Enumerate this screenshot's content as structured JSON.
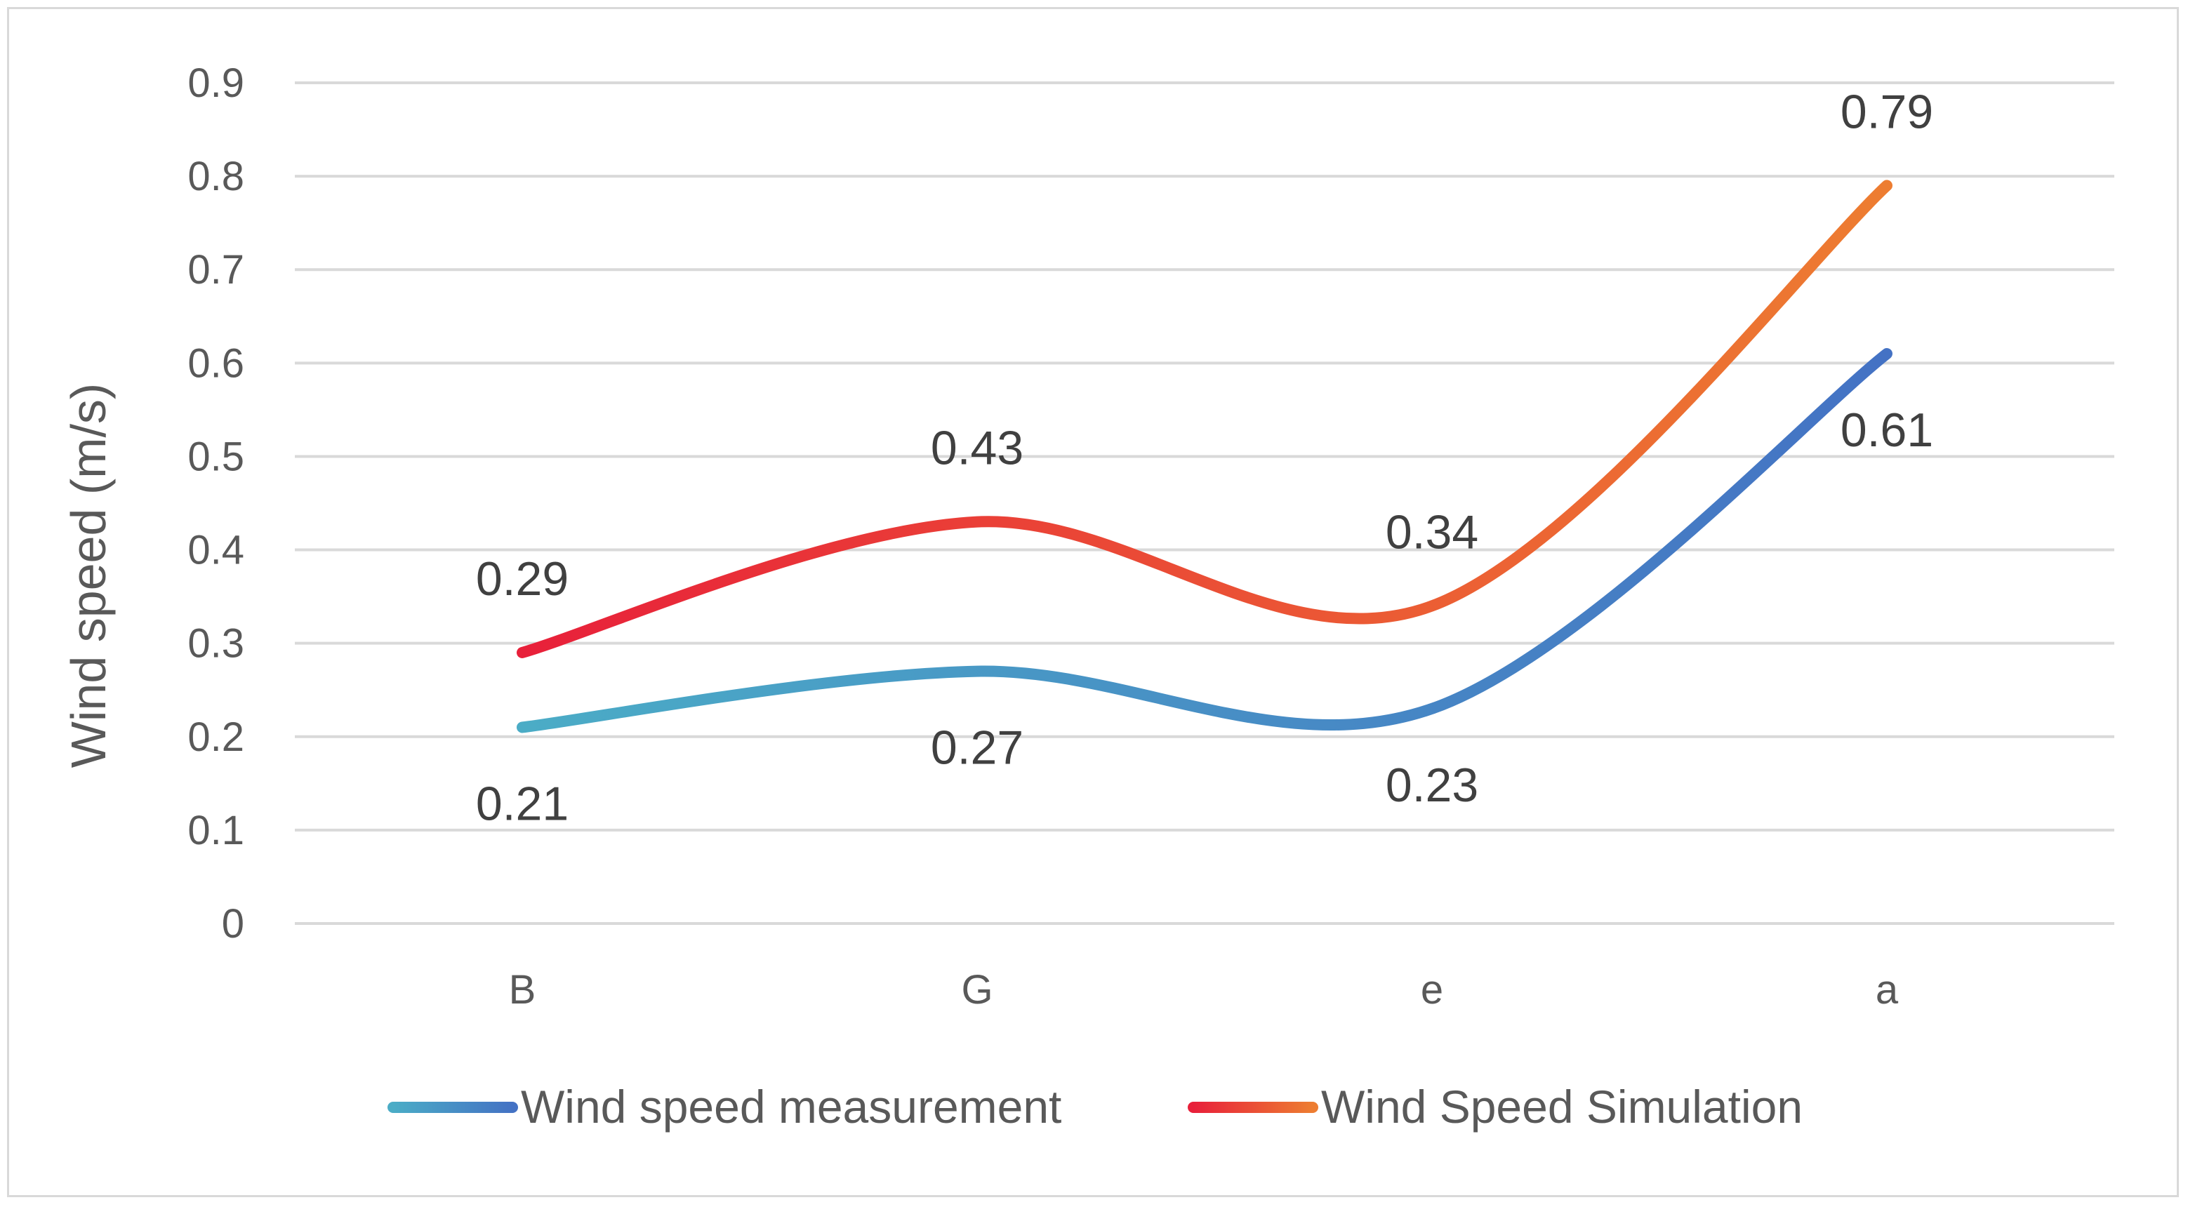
{
  "chart_data": {
    "type": "line",
    "categories": [
      "B",
      "G",
      "e",
      "a"
    ],
    "series": [
      {
        "name": "Wind speed measurement",
        "values": [
          0.21,
          0.27,
          0.23,
          0.61
        ],
        "labels": [
          "0.21",
          "0.27",
          "0.23",
          "0.61"
        ],
        "color_start": "#4bacc6",
        "color_end": "#4472c4"
      },
      {
        "name": "Wind Speed Simulation",
        "values": [
          0.29,
          0.43,
          0.34,
          0.79
        ],
        "labels": [
          "0.29",
          "0.43",
          "0.34",
          "0.79"
        ],
        "color_start": "#e8203a",
        "color_end": "#ed7d31"
      }
    ],
    "title": "",
    "xlabel": "",
    "ylabel": "Wind speed (m/s)",
    "ylim": [
      0,
      0.9
    ],
    "yticks": [
      "0",
      "0.1",
      "0.2",
      "0.3",
      "0.4",
      "0.5",
      "0.6",
      "0.7",
      "0.8",
      "0.9"
    ],
    "grid": true,
    "legend": "bottom",
    "smooth": true,
    "label_positions": [
      [
        "below",
        "below",
        "below",
        "below"
      ],
      [
        "above",
        "above",
        "above",
        "above"
      ]
    ]
  }
}
